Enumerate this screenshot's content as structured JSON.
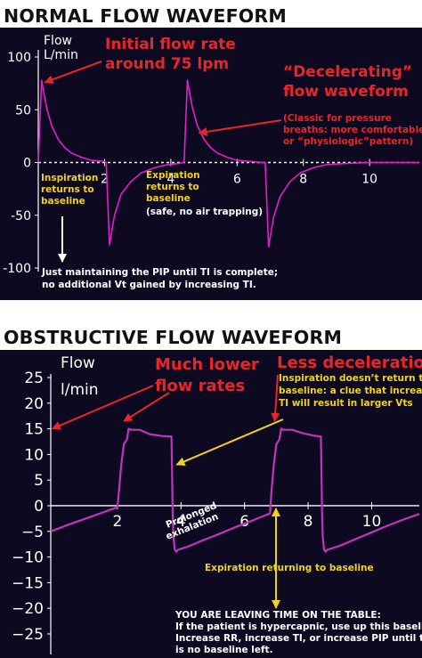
{
  "chart_data": [
    {
      "type": "line",
      "title": "NORMAL FLOW WAVEFORM",
      "ylabel": "Flow L/min",
      "ylabel_lines": [
        "Flow",
        "L/min"
      ],
      "xlim": [
        0,
        11.5
      ],
      "ylim": [
        -100,
        100
      ],
      "y_ticks": [
        100,
        50,
        0,
        -50,
        -100
      ],
      "x_ticks": [
        2,
        4,
        6,
        8,
        10
      ],
      "grid": false,
      "zero_line": "dashed",
      "series": [
        {
          "color": "#e020c8",
          "x": [
            0,
            0.1,
            0.25,
            0.4,
            0.6,
            0.8,
            1.0,
            1.3,
            1.6,
            2.0,
            2.05,
            2.15,
            2.3,
            2.5,
            2.8,
            3.1,
            3.5,
            3.9,
            4.2,
            4.4,
            4.5,
            4.65,
            4.8,
            5.0,
            5.2,
            5.4,
            5.7,
            6.0,
            6.4,
            6.8,
            6.85,
            6.95,
            7.1,
            7.3,
            7.6,
            7.9,
            8.3,
            8.7,
            9.2,
            10.0,
            11.5
          ],
          "y": [
            0,
            78,
            52,
            35,
            22,
            14,
            9,
            5,
            2,
            1,
            0,
            -78,
            -50,
            -30,
            -18,
            -10,
            -5,
            -2,
            -1,
            0,
            78,
            52,
            35,
            22,
            14,
            9,
            5,
            2,
            1,
            0,
            0,
            -80,
            -52,
            -32,
            -18,
            -10,
            -5,
            -2,
            -1,
            0,
            0
          ]
        }
      ],
      "annotations": [
        {
          "text": "Initial flow rate around 75 lpm",
          "lines": [
            "Initial flow rate",
            "around 75 lpm"
          ],
          "color": "#e8262a"
        },
        {
          "text": "“Decelerating” flow waveform",
          "lines": [
            "“Decelerating”",
            "flow waveform"
          ],
          "color": "#e8262a"
        },
        {
          "text": "(Classic for pressure breaths: more comfortable or “physiologic”pattern)",
          "lines": [
            "(Classic for pressure",
            "breaths: more comfortable",
            "or “physiologic”pattern)"
          ],
          "color": "#e8262a"
        },
        {
          "text": "Inspiration returns to baseline",
          "lines": [
            "Inspiration",
            "returns to",
            "baseline"
          ],
          "color": "#f2d31b"
        },
        {
          "text": "Expiration returns to baseline",
          "lines": [
            "Expiration",
            "returns to",
            "baseline"
          ],
          "color": "#f2d31b"
        },
        {
          "text": "(safe, no air trapping)",
          "lines": [
            "(safe, no air trapping)"
          ],
          "color": "#ffffff"
        },
        {
          "text": "Just maintaining the PIP until TI is complete; no additional Vt gained by increasing TI.",
          "lines": [
            "Just maintaining the PIP until TI is complete;",
            "no additional Vt gained by increasing TI."
          ],
          "color": "#ffffff"
        }
      ]
    },
    {
      "type": "line",
      "title": "OBSTRUCTIVE FLOW WAVEFORM",
      "ylabel": "Flow l/min",
      "ylabel_lines": [
        "Flow",
        "l/min"
      ],
      "xlim": [
        -0.1,
        11.5
      ],
      "ylim": [
        -29,
        25
      ],
      "y_ticks": [
        25,
        20,
        15,
        10,
        5,
        0,
        -5,
        -10,
        -15,
        -20,
        -25
      ],
      "x_ticks": [
        2,
        4,
        6,
        8,
        10
      ],
      "grid": false,
      "zero_line": "solid",
      "series": [
        {
          "color": "#c036b8",
          "x": [
            -0.1,
            0.5,
            1.0,
            1.5,
            2.0,
            2.05,
            2.12,
            2.2,
            2.3,
            2.35,
            2.45,
            2.7,
            3.0,
            3.4,
            3.7,
            3.72,
            3.74,
            3.76,
            3.8,
            3.85,
            3.9,
            4.2,
            4.7,
            5.2,
            5.7,
            6.2,
            6.6,
            6.8,
            6.85,
            6.92,
            7.0,
            7.1,
            7.15,
            7.25,
            7.5,
            7.8,
            8.15,
            8.4,
            8.42,
            8.44,
            8.46,
            8.5,
            8.55,
            8.6,
            9.0,
            9.5,
            10.0,
            10.5,
            11.0,
            11.5
          ],
          "y": [
            -5,
            -3.6,
            -2.5,
            -1.4,
            -0.3,
            3,
            8,
            12,
            13,
            15,
            14.8,
            14.8,
            14,
            13.6,
            13.5,
            6,
            -2,
            -6,
            -8.5,
            -9,
            -8.6,
            -8,
            -6.7,
            -5.5,
            -4.2,
            -3,
            -2,
            -1.5,
            3,
            8,
            12,
            13,
            15,
            14.8,
            14.8,
            14.2,
            13.7,
            13.5,
            6,
            -2,
            -6,
            -8.5,
            -9,
            -8.6,
            -7.8,
            -6.5,
            -5.2,
            -3.9,
            -2.7,
            -1.6
          ]
        }
      ],
      "annotations": [
        {
          "text": "Much lower flow rates",
          "lines": [
            "Much lower",
            "flow rates"
          ],
          "color": "#e8262a"
        },
        {
          "text": "Less deceleration",
          "lines": [
            "Less deceleration"
          ],
          "color": "#e8262a"
        },
        {
          "text": "Inspiration doesn’t return to baseline: a clue that increasing TI will result in larger Vts",
          "lines": [
            "Inspiration doesn’t return to",
            "baseline: a clue that increasing",
            "TI will result in larger Vts"
          ],
          "color": "#f2d31b"
        },
        {
          "text": "Prolonged exhalation",
          "lines": [
            "Prolonged",
            "exhalation"
          ],
          "color": "#ffffff"
        },
        {
          "text": "Expiration returning to baseline",
          "lines": [
            "Expiration returning to baseline"
          ],
          "color": "#f2d31b"
        },
        {
          "text": "YOU ARE LEAVING TIME ON THE TABLE: If the patient is hypercapnic, use up this baseline! Increase RR, increase TI, or increase PIP until there is no baseline left.",
          "lines": [
            "YOU ARE LEAVING TIME ON THE TABLE:",
            "If the patient is hypercapnic, use up this baseline!",
            "Increase RR, increase TI, or increase PIP until there",
            "is no baseline left."
          ],
          "color": "#ffffff"
        }
      ]
    }
  ],
  "colors": {
    "panel_bg": "#0d0920",
    "axis": "#ffffff",
    "red_note": "#e8262a",
    "yellow_note": "#f2d31b",
    "white_note": "#ffffff"
  }
}
